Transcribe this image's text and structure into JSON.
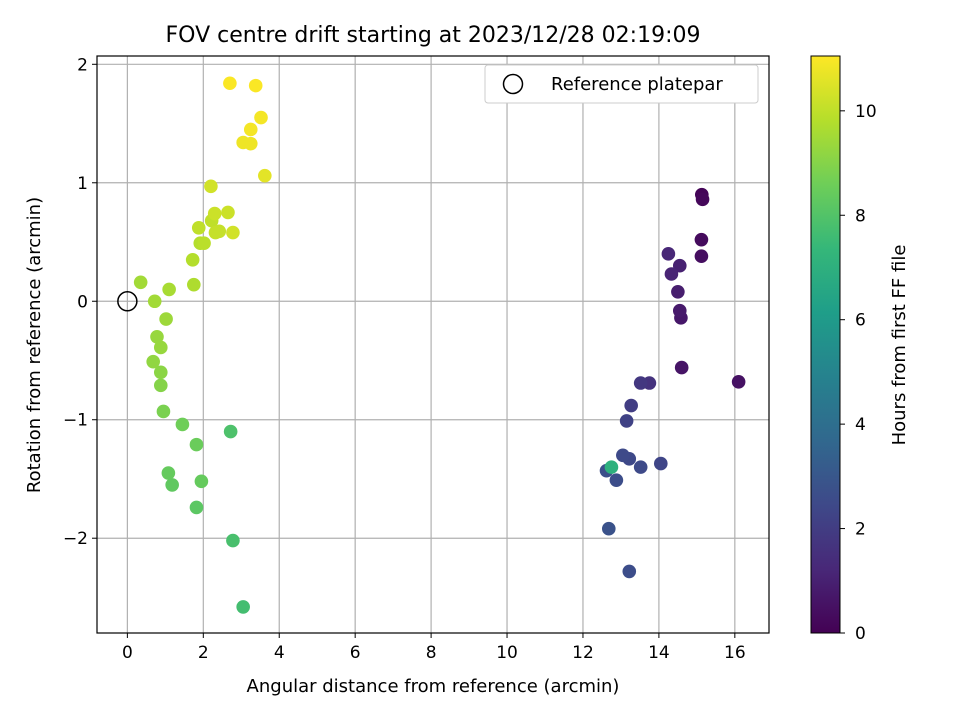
{
  "chart_data": {
    "type": "scatter",
    "title": "FOV centre drift starting at 2023/12/28 02:19:09",
    "xlabel": "Angular distance from reference (arcmin)",
    "ylabel": "Rotation from reference (arcmin)",
    "xlim": [
      -0.8,
      16.9
    ],
    "ylim": [
      -2.8,
      2.07
    ],
    "x_ticks": [
      0,
      2,
      4,
      6,
      8,
      10,
      12,
      14,
      16
    ],
    "y_ticks": [
      -2,
      -1,
      0,
      1,
      2
    ],
    "y_tick_labels": [
      "−2",
      "−1",
      "0",
      "1",
      "2"
    ],
    "grid": true,
    "legend": {
      "placement": "top-right",
      "entries": [
        "Reference platepar"
      ]
    },
    "reference_point": {
      "x": 0,
      "y": 0,
      "label": "Reference platepar"
    },
    "colorbar": {
      "label": "Hours from first FF file",
      "range": [
        0,
        11.05
      ],
      "ticks": [
        0,
        2,
        4,
        6,
        8,
        10
      ],
      "colormap": "viridis",
      "colors": [
        "#440154",
        "#482878",
        "#3e4989",
        "#31688e",
        "#26828e",
        "#1f9e89",
        "#35b779",
        "#6ece58",
        "#b5de2b",
        "#fde725"
      ]
    },
    "points": [
      {
        "x": 15.13,
        "y": 0.9,
        "h": 0.1
      },
      {
        "x": 15.15,
        "y": 0.86,
        "h": 0.2
      },
      {
        "x": 15.12,
        "y": 0.52,
        "h": 0.3
      },
      {
        "x": 15.12,
        "y": 0.38,
        "h": 0.4
      },
      {
        "x": 16.1,
        "y": -0.68,
        "h": 0.5
      },
      {
        "x": 14.6,
        "y": -0.56,
        "h": 0.6
      },
      {
        "x": 14.58,
        "y": -0.14,
        "h": 0.7
      },
      {
        "x": 14.55,
        "y": -0.08,
        "h": 0.8
      },
      {
        "x": 14.5,
        "y": 0.08,
        "h": 0.9
      },
      {
        "x": 14.55,
        "y": 0.3,
        "h": 1.0
      },
      {
        "x": 14.33,
        "y": 0.23,
        "h": 1.1
      },
      {
        "x": 14.25,
        "y": 0.4,
        "h": 1.2
      },
      {
        "x": 13.75,
        "y": -0.69,
        "h": 1.6
      },
      {
        "x": 13.52,
        "y": -0.69,
        "h": 1.8
      },
      {
        "x": 13.27,
        "y": -0.88,
        "h": 2.0
      },
      {
        "x": 13.15,
        "y": -1.01,
        "h": 2.2
      },
      {
        "x": 14.05,
        "y": -1.37,
        "h": 2.3
      },
      {
        "x": 13.22,
        "y": -1.33,
        "h": 2.4
      },
      {
        "x": 13.05,
        "y": -1.3,
        "h": 2.5
      },
      {
        "x": 13.52,
        "y": -1.4,
        "h": 2.5
      },
      {
        "x": 12.88,
        "y": -1.51,
        "h": 2.6
      },
      {
        "x": 12.62,
        "y": -1.43,
        "h": 2.7
      },
      {
        "x": 12.68,
        "y": -1.92,
        "h": 2.8
      },
      {
        "x": 13.22,
        "y": -2.28,
        "h": 2.6
      },
      {
        "x": 12.75,
        "y": -1.4,
        "h": 7.0
      },
      {
        "x": 3.05,
        "y": -2.58,
        "h": 7.7
      },
      {
        "x": 2.78,
        "y": -2.02,
        "h": 7.8
      },
      {
        "x": 2.72,
        "y": -1.1,
        "h": 7.9
      },
      {
        "x": 1.82,
        "y": -1.74,
        "h": 8.2
      },
      {
        "x": 1.18,
        "y": -1.55,
        "h": 8.3
      },
      {
        "x": 1.08,
        "y": -1.45,
        "h": 8.4
      },
      {
        "x": 1.95,
        "y": -1.52,
        "h": 8.4
      },
      {
        "x": 1.82,
        "y": -1.21,
        "h": 8.5
      },
      {
        "x": 1.45,
        "y": -1.04,
        "h": 8.6
      },
      {
        "x": 0.95,
        "y": -0.93,
        "h": 8.8
      },
      {
        "x": 0.88,
        "y": -0.71,
        "h": 9.0
      },
      {
        "x": 0.88,
        "y": -0.6,
        "h": 9.1
      },
      {
        "x": 0.68,
        "y": -0.51,
        "h": 9.2
      },
      {
        "x": 0.88,
        "y": -0.39,
        "h": 9.3
      },
      {
        "x": 0.78,
        "y": -0.3,
        "h": 9.3
      },
      {
        "x": 1.02,
        "y": -0.15,
        "h": 9.4
      },
      {
        "x": 0.72,
        "y": 0.0,
        "h": 9.5
      },
      {
        "x": 0.35,
        "y": 0.16,
        "h": 9.5
      },
      {
        "x": 1.1,
        "y": 0.1,
        "h": 9.6
      },
      {
        "x": 1.75,
        "y": 0.14,
        "h": 9.7
      },
      {
        "x": 1.72,
        "y": 0.35,
        "h": 9.8
      },
      {
        "x": 1.92,
        "y": 0.49,
        "h": 9.8
      },
      {
        "x": 2.02,
        "y": 0.49,
        "h": 9.9
      },
      {
        "x": 1.88,
        "y": 0.62,
        "h": 10.0
      },
      {
        "x": 2.22,
        "y": 0.68,
        "h": 10.0
      },
      {
        "x": 2.32,
        "y": 0.58,
        "h": 10.1
      },
      {
        "x": 2.42,
        "y": 0.59,
        "h": 10.1
      },
      {
        "x": 2.3,
        "y": 0.74,
        "h": 10.2
      },
      {
        "x": 2.65,
        "y": 0.75,
        "h": 10.2
      },
      {
        "x": 2.78,
        "y": 0.58,
        "h": 10.3
      },
      {
        "x": 2.2,
        "y": 0.97,
        "h": 10.3
      },
      {
        "x": 3.62,
        "y": 1.06,
        "h": 10.6
      },
      {
        "x": 3.05,
        "y": 1.34,
        "h": 10.8
      },
      {
        "x": 3.25,
        "y": 1.33,
        "h": 10.8
      },
      {
        "x": 3.25,
        "y": 1.45,
        "h": 10.9
      },
      {
        "x": 3.52,
        "y": 1.55,
        "h": 10.9
      },
      {
        "x": 2.7,
        "y": 1.84,
        "h": 11.0
      },
      {
        "x": 3.38,
        "y": 1.82,
        "h": 11.0
      }
    ]
  }
}
